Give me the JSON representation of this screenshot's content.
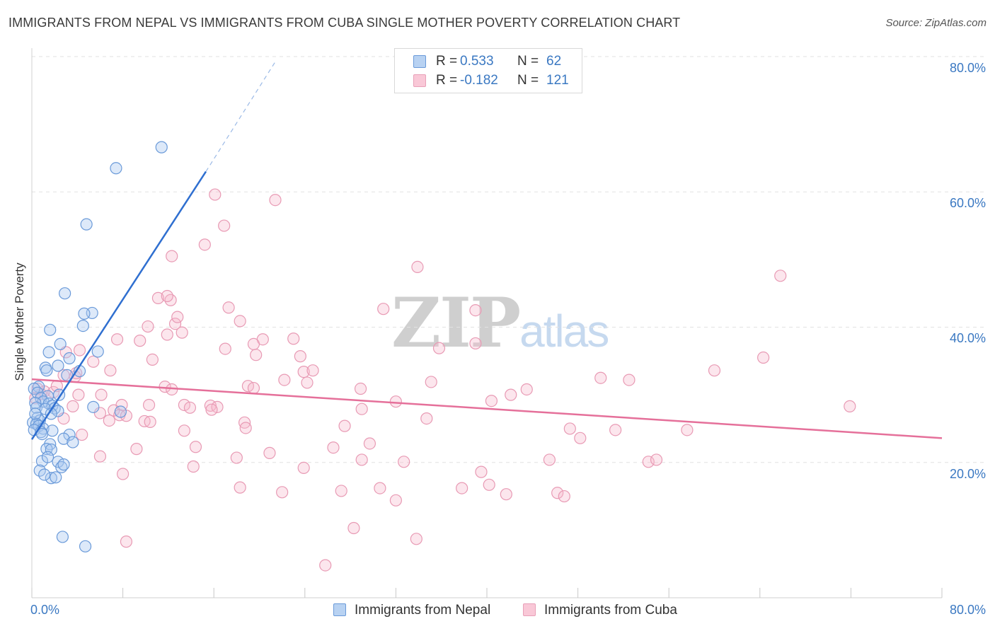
{
  "header": {
    "title": "IMMIGRANTS FROM NEPAL VS IMMIGRANTS FROM CUBA SINGLE MOTHER POVERTY CORRELATION CHART",
    "source": "Source: ZipAtlas.com"
  },
  "watermark": {
    "zip": "ZIP",
    "atlas": "atlas"
  },
  "legend": {
    "r_label": "R =",
    "n_label": "N =",
    "series": [
      {
        "name": "Immigrants from Nepal",
        "r": "0.533",
        "n": "62",
        "color": "#5b8fd6",
        "fill": "#a9c8f0"
      },
      {
        "name": "Immigrants from Cuba",
        "r": "-0.182",
        "n": "121",
        "color": "#e07098",
        "fill": "#f7b8cc"
      }
    ]
  },
  "colors": {
    "nepal_line": "#2f6fd0",
    "cuba_line": "#e5709a",
    "tick_text": "#3a78c2",
    "grid": "#e2e2e2"
  },
  "chart_data": {
    "type": "scatter",
    "title": "IMMIGRANTS FROM NEPAL VS IMMIGRANTS FROM CUBA SINGLE MOTHER POVERTY CORRELATION CHART",
    "xlabel": "",
    "ylabel": "Single Mother Poverty",
    "xlim": [
      0,
      80
    ],
    "ylim": [
      0,
      80
    ],
    "x_tick_labels": [
      "0.0%",
      "80.0%"
    ],
    "y_ticks": [
      {
        "value": 80,
        "label": "80.0%"
      },
      {
        "value": 60,
        "label": "60.0%"
      },
      {
        "value": 40,
        "label": "40.0%"
      },
      {
        "value": 20,
        "label": "20.0%"
      }
    ],
    "series": [
      {
        "name": "Immigrants from Nepal",
        "trend": {
          "x0": 0.0,
          "y0": 23.4,
          "x1": 15.3,
          "y1": 63.0,
          "dash_x1": 21.5,
          "dash_y1": 79.5
        },
        "points": [
          [
            11.4,
            66.6
          ],
          [
            7.4,
            63.5
          ],
          [
            4.8,
            55.2
          ],
          [
            2.9,
            45.0
          ],
          [
            5.3,
            42.1
          ],
          [
            4.6,
            42.0
          ],
          [
            4.5,
            40.2
          ],
          [
            1.6,
            39.6
          ],
          [
            2.5,
            37.5
          ],
          [
            1.5,
            36.3
          ],
          [
            5.8,
            36.4
          ],
          [
            3.3,
            35.4
          ],
          [
            1.2,
            34.0
          ],
          [
            2.3,
            34.3
          ],
          [
            1.3,
            33.6
          ],
          [
            4.2,
            33.5
          ],
          [
            3.1,
            32.9
          ],
          [
            0.6,
            31.2
          ],
          [
            0.2,
            30.9
          ],
          [
            0.5,
            30.3
          ],
          [
            1.4,
            29.8
          ],
          [
            2.4,
            30.0
          ],
          [
            0.8,
            29.5
          ],
          [
            1.0,
            29.0
          ],
          [
            0.3,
            28.8
          ],
          [
            1.5,
            28.7
          ],
          [
            1.8,
            28.4
          ],
          [
            0.4,
            28.1
          ],
          [
            1.2,
            27.9
          ],
          [
            2.0,
            28.0
          ],
          [
            2.3,
            27.6
          ],
          [
            5.4,
            28.2
          ],
          [
            7.8,
            27.5
          ],
          [
            1.7,
            27.2
          ],
          [
            0.5,
            26.6
          ],
          [
            0.7,
            26.2
          ],
          [
            0.1,
            25.9
          ],
          [
            0.4,
            25.7
          ],
          [
            0.6,
            25.4
          ],
          [
            1.0,
            25.0
          ],
          [
            0.2,
            24.8
          ],
          [
            0.8,
            24.5
          ],
          [
            1.8,
            24.7
          ],
          [
            0.9,
            24.2
          ],
          [
            3.3,
            24.1
          ],
          [
            2.8,
            23.5
          ],
          [
            3.6,
            23.0
          ],
          [
            1.6,
            22.7
          ],
          [
            1.3,
            22.0
          ],
          [
            1.7,
            21.9
          ],
          [
            0.9,
            20.2
          ],
          [
            2.3,
            20.1
          ],
          [
            2.6,
            19.3
          ],
          [
            2.8,
            19.7
          ],
          [
            1.7,
            17.7
          ],
          [
            2.1,
            17.8
          ],
          [
            0.7,
            18.8
          ],
          [
            1.1,
            18.2
          ],
          [
            2.7,
            9.0
          ],
          [
            4.7,
            7.6
          ],
          [
            1.4,
            20.8
          ],
          [
            0.3,
            27.2
          ]
        ]
      },
      {
        "name": "Immigrants from Cuba",
        "trend": {
          "x0": 0.0,
          "y0": 32.3,
          "x1": 80.0,
          "y1": 23.6
        },
        "points": [
          [
            16.1,
            59.6
          ],
          [
            21.4,
            58.8
          ],
          [
            33.9,
            48.9
          ],
          [
            65.8,
            47.6
          ],
          [
            16.9,
            55.0
          ],
          [
            15.2,
            52.2
          ],
          [
            12.3,
            50.5
          ],
          [
            12.2,
            44.0
          ],
          [
            11.1,
            44.3
          ],
          [
            11.9,
            44.6
          ],
          [
            17.3,
            42.9
          ],
          [
            30.9,
            42.7
          ],
          [
            39.0,
            42.5
          ],
          [
            12.6,
            40.5
          ],
          [
            18.3,
            40.9
          ],
          [
            12.8,
            41.5
          ],
          [
            13.2,
            39.2
          ],
          [
            10.2,
            40.1
          ],
          [
            11.9,
            38.9
          ],
          [
            20.3,
            38.2
          ],
          [
            23.0,
            38.3
          ],
          [
            7.5,
            38.2
          ],
          [
            9.5,
            38.0
          ],
          [
            19.5,
            37.5
          ],
          [
            17.0,
            36.8
          ],
          [
            35.8,
            36.9
          ],
          [
            39.0,
            37.6
          ],
          [
            19.7,
            35.9
          ],
          [
            23.6,
            35.7
          ],
          [
            3.0,
            36.3
          ],
          [
            4.2,
            36.6
          ],
          [
            64.3,
            35.5
          ],
          [
            10.6,
            35.2
          ],
          [
            5.4,
            34.9
          ],
          [
            23.9,
            33.4
          ],
          [
            24.7,
            33.6
          ],
          [
            6.9,
            33.6
          ],
          [
            60.0,
            33.6
          ],
          [
            2.8,
            32.9
          ],
          [
            3.8,
            32.7
          ],
          [
            50.0,
            32.5
          ],
          [
            52.5,
            32.2
          ],
          [
            22.2,
            32.2
          ],
          [
            24.2,
            31.8
          ],
          [
            35.1,
            31.9
          ],
          [
            19.0,
            31.3
          ],
          [
            19.5,
            31.0
          ],
          [
            11.7,
            31.2
          ],
          [
            12.3,
            30.8
          ],
          [
            28.9,
            30.9
          ],
          [
            43.5,
            30.8
          ],
          [
            1.1,
            30.5
          ],
          [
            1.9,
            30.4
          ],
          [
            0.8,
            30.1
          ],
          [
            4.1,
            30.0
          ],
          [
            42.1,
            30.0
          ],
          [
            40.4,
            29.1
          ],
          [
            32.0,
            29.0
          ],
          [
            7.9,
            28.5
          ],
          [
            13.4,
            28.5
          ],
          [
            10.3,
            28.5
          ],
          [
            3.6,
            28.3
          ],
          [
            13.9,
            28.1
          ],
          [
            15.7,
            28.4
          ],
          [
            16.3,
            28.2
          ],
          [
            15.8,
            27.8
          ],
          [
            29.0,
            27.9
          ],
          [
            71.9,
            28.3
          ],
          [
            7.2,
            27.7
          ],
          [
            7.7,
            27.0
          ],
          [
            8.3,
            26.9
          ],
          [
            34.7,
            26.5
          ],
          [
            2.8,
            26.5
          ],
          [
            6.8,
            26.2
          ],
          [
            9.9,
            26.1
          ],
          [
            18.7,
            25.9
          ],
          [
            13.4,
            24.7
          ],
          [
            27.5,
            25.4
          ],
          [
            18.8,
            25.1
          ],
          [
            10.4,
            26.0
          ],
          [
            4.4,
            24.1
          ],
          [
            47.3,
            25.0
          ],
          [
            51.3,
            24.8
          ],
          [
            57.6,
            24.8
          ],
          [
            48.2,
            23.6
          ],
          [
            29.7,
            22.8
          ],
          [
            26.5,
            22.2
          ],
          [
            14.4,
            22.3
          ],
          [
            9.2,
            22.0
          ],
          [
            20.9,
            21.4
          ],
          [
            6.0,
            20.9
          ],
          [
            18.0,
            20.7
          ],
          [
            29.0,
            20.4
          ],
          [
            32.7,
            20.1
          ],
          [
            45.5,
            20.4
          ],
          [
            54.2,
            20.1
          ],
          [
            54.9,
            20.4
          ],
          [
            14.2,
            19.4
          ],
          [
            23.9,
            19.2
          ],
          [
            39.5,
            18.6
          ],
          [
            8.0,
            18.3
          ],
          [
            40.2,
            16.7
          ],
          [
            37.8,
            16.2
          ],
          [
            30.6,
            16.2
          ],
          [
            27.2,
            15.8
          ],
          [
            18.3,
            16.3
          ],
          [
            22.0,
            15.6
          ],
          [
            41.7,
            15.3
          ],
          [
            46.2,
            15.5
          ],
          [
            46.8,
            15.0
          ],
          [
            32.0,
            14.4
          ],
          [
            28.3,
            10.3
          ],
          [
            33.8,
            8.7
          ],
          [
            8.3,
            8.3
          ],
          [
            25.8,
            4.8
          ],
          [
            6.1,
            30.0
          ],
          [
            0.5,
            30.9
          ],
          [
            2.2,
            31.3
          ],
          [
            3.9,
            33.2
          ],
          [
            0.3,
            29.5
          ],
          [
            6.0,
            27.3
          ]
        ]
      }
    ]
  }
}
